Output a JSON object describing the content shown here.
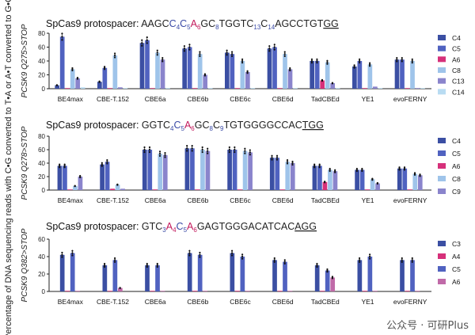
{
  "y_axis_label": "Percentage of DNA sequencing reads with C•G converted to T•A or A•T converted to G•C",
  "watermark": "公众号 · 可研Plus",
  "bases": {
    "panel1": [
      {
        "t": "AAGC",
        "c": "#222"
      },
      {
        "t": "C",
        "c": "#3a4aa6"
      },
      {
        "t": "4",
        "c": "#3a4aa6",
        "sub": true
      },
      {
        "t": "C",
        "c": "#3a4aa6"
      },
      {
        "t": "5",
        "c": "#3a4aa6",
        "sub": true
      },
      {
        "t": "A",
        "c": "#c2185b"
      },
      {
        "t": "6",
        "c": "#c2185b",
        "sub": true
      },
      {
        "t": "GC",
        "c": "#222"
      },
      {
        "t": "8",
        "c": "#3a4aa6",
        "sub": true
      },
      {
        "t": "TGGTC",
        "c": "#222"
      },
      {
        "t": "13",
        "c": "#3a4aa6",
        "sub": true
      },
      {
        "t": "C",
        "c": "#222"
      },
      {
        "t": "14",
        "c": "#3a4aa6",
        "sub": true
      },
      {
        "t": "AGCCTGT",
        "c": "#222"
      },
      {
        "t": "GG",
        "c": "#222",
        "u": true
      }
    ],
    "panel2": [
      {
        "t": "GGTC",
        "c": "#222"
      },
      {
        "t": "4",
        "c": "#3a4aa6",
        "sub": true
      },
      {
        "t": "C",
        "c": "#3a4aa6"
      },
      {
        "t": "5",
        "c": "#3a4aa6",
        "sub": true
      },
      {
        "t": "A",
        "c": "#c2185b"
      },
      {
        "t": "6",
        "c": "#c2185b",
        "sub": true
      },
      {
        "t": "GC",
        "c": "#222"
      },
      {
        "t": "8",
        "c": "#3a4aa6",
        "sub": true
      },
      {
        "t": "C",
        "c": "#222"
      },
      {
        "t": "9",
        "c": "#3a4aa6",
        "sub": true
      },
      {
        "t": "TGTGGGGCCAC",
        "c": "#222"
      },
      {
        "t": "TGG",
        "c": "#222",
        "u": true
      }
    ],
    "panel3": [
      {
        "t": "GTC",
        "c": "#222"
      },
      {
        "t": "3",
        "c": "#3a4aa6",
        "sub": true
      },
      {
        "t": "A",
        "c": "#c2185b"
      },
      {
        "t": "4",
        "c": "#c2185b",
        "sub": true
      },
      {
        "t": "C",
        "c": "#3a4aa6"
      },
      {
        "t": "5",
        "c": "#3a4aa6",
        "sub": true
      },
      {
        "t": "A",
        "c": "#c2185b"
      },
      {
        "t": "6",
        "c": "#c2185b",
        "sub": true
      },
      {
        "t": "GAGTGGGACATCAC",
        "c": "#222"
      },
      {
        "t": "AGG",
        "c": "#222",
        "u": true
      }
    ]
  },
  "chart_data": [
    {
      "type": "bar",
      "title_prefix": "SpCas9 protospacer: ",
      "ylabel_main": "PCSK9 Q275>STOP",
      "ylim": [
        0,
        80
      ],
      "yticks": [
        0,
        20,
        40,
        60,
        80
      ],
      "categories": [
        "BE4max",
        "CBE-T.152",
        "CBE6a",
        "CBE6b",
        "CBE6c",
        "CBE6d",
        "TadCBEd",
        "YE1",
        "evoFERNY"
      ],
      "series": [
        {
          "name": "C4",
          "color": "#3b4fa3",
          "values": [
            5,
            10,
            66,
            58,
            52,
            58,
            40,
            32,
            42
          ]
        },
        {
          "name": "C5",
          "color": "#5062c0",
          "values": [
            75,
            30,
            70,
            60,
            50,
            60,
            40,
            40,
            42
          ]
        },
        {
          "name": "A6",
          "color": "#d6307a",
          "values": [
            0,
            0,
            0,
            0,
            0,
            0,
            12,
            0,
            0
          ]
        },
        {
          "name": "C8",
          "color": "#9fc4ea",
          "values": [
            28,
            48,
            52,
            50,
            40,
            50,
            38,
            35,
            40
          ]
        },
        {
          "name": "C13",
          "color": "#8a84cc",
          "values": [
            15,
            2,
            42,
            20,
            24,
            28,
            8,
            3,
            0
          ]
        },
        {
          "name": "C14",
          "color": "#b9dcf2",
          "values": [
            2,
            0,
            1,
            1,
            1,
            1,
            1,
            1,
            0
          ]
        }
      ]
    },
    {
      "type": "bar",
      "title_prefix": "SpCas9 protospacer: ",
      "ylabel_main": "PCSK9 Q278>STOP",
      "ylim": [
        0,
        80
      ],
      "yticks": [
        0,
        20,
        40,
        60,
        80
      ],
      "categories": [
        "BE4max",
        "CBE-T.152",
        "CBE6a",
        "CBE6b",
        "CBE6c",
        "CBE6d",
        "TadCBEd",
        "YE1",
        "evoFERNY"
      ],
      "series": [
        {
          "name": "C4",
          "color": "#3b4fa3",
          "values": [
            36,
            38,
            60,
            62,
            60,
            48,
            36,
            30,
            32
          ]
        },
        {
          "name": "C5",
          "color": "#5062c0",
          "values": [
            36,
            42,
            60,
            62,
            60,
            48,
            36,
            30,
            32
          ]
        },
        {
          "name": "A6",
          "color": "#d6307a",
          "values": [
            0,
            2,
            0,
            0,
            0,
            0,
            12,
            0,
            0
          ]
        },
        {
          "name": "C8",
          "color": "#9fc4ea",
          "values": [
            6,
            8,
            54,
            60,
            58,
            42,
            30,
            16,
            24
          ]
        },
        {
          "name": "C9",
          "color": "#8a84cc",
          "values": [
            20,
            2,
            52,
            58,
            56,
            40,
            28,
            10,
            22
          ]
        }
      ]
    },
    {
      "type": "bar",
      "title_prefix": "SpCas9 protospacer: ",
      "ylabel_main": "PCSK9 Q382>STOP",
      "ylim": [
        0,
        60
      ],
      "yticks": [
        0,
        20,
        40,
        60
      ],
      "categories": [
        "BE4max",
        "CBE-T.152",
        "CBE6a",
        "CBE6b",
        "CBE6c",
        "CBE6d",
        "TadCBEd",
        "YE1",
        "evoFERNY"
      ],
      "series": [
        {
          "name": "C3",
          "color": "#3b4fa3",
          "values": [
            42,
            30,
            30,
            44,
            44,
            36,
            30,
            36,
            36
          ]
        },
        {
          "name": "A4",
          "color": "#d6307a",
          "values": [
            0,
            0,
            0,
            0,
            0,
            0,
            0,
            0,
            0
          ]
        },
        {
          "name": "C5",
          "color": "#5062c0",
          "values": [
            44,
            36,
            30,
            42,
            40,
            34,
            24,
            40,
            36
          ]
        },
        {
          "name": "A6",
          "color": "#c06aa8",
          "values": [
            0,
            4,
            0,
            0,
            0,
            0,
            16,
            0,
            0
          ]
        }
      ]
    }
  ]
}
